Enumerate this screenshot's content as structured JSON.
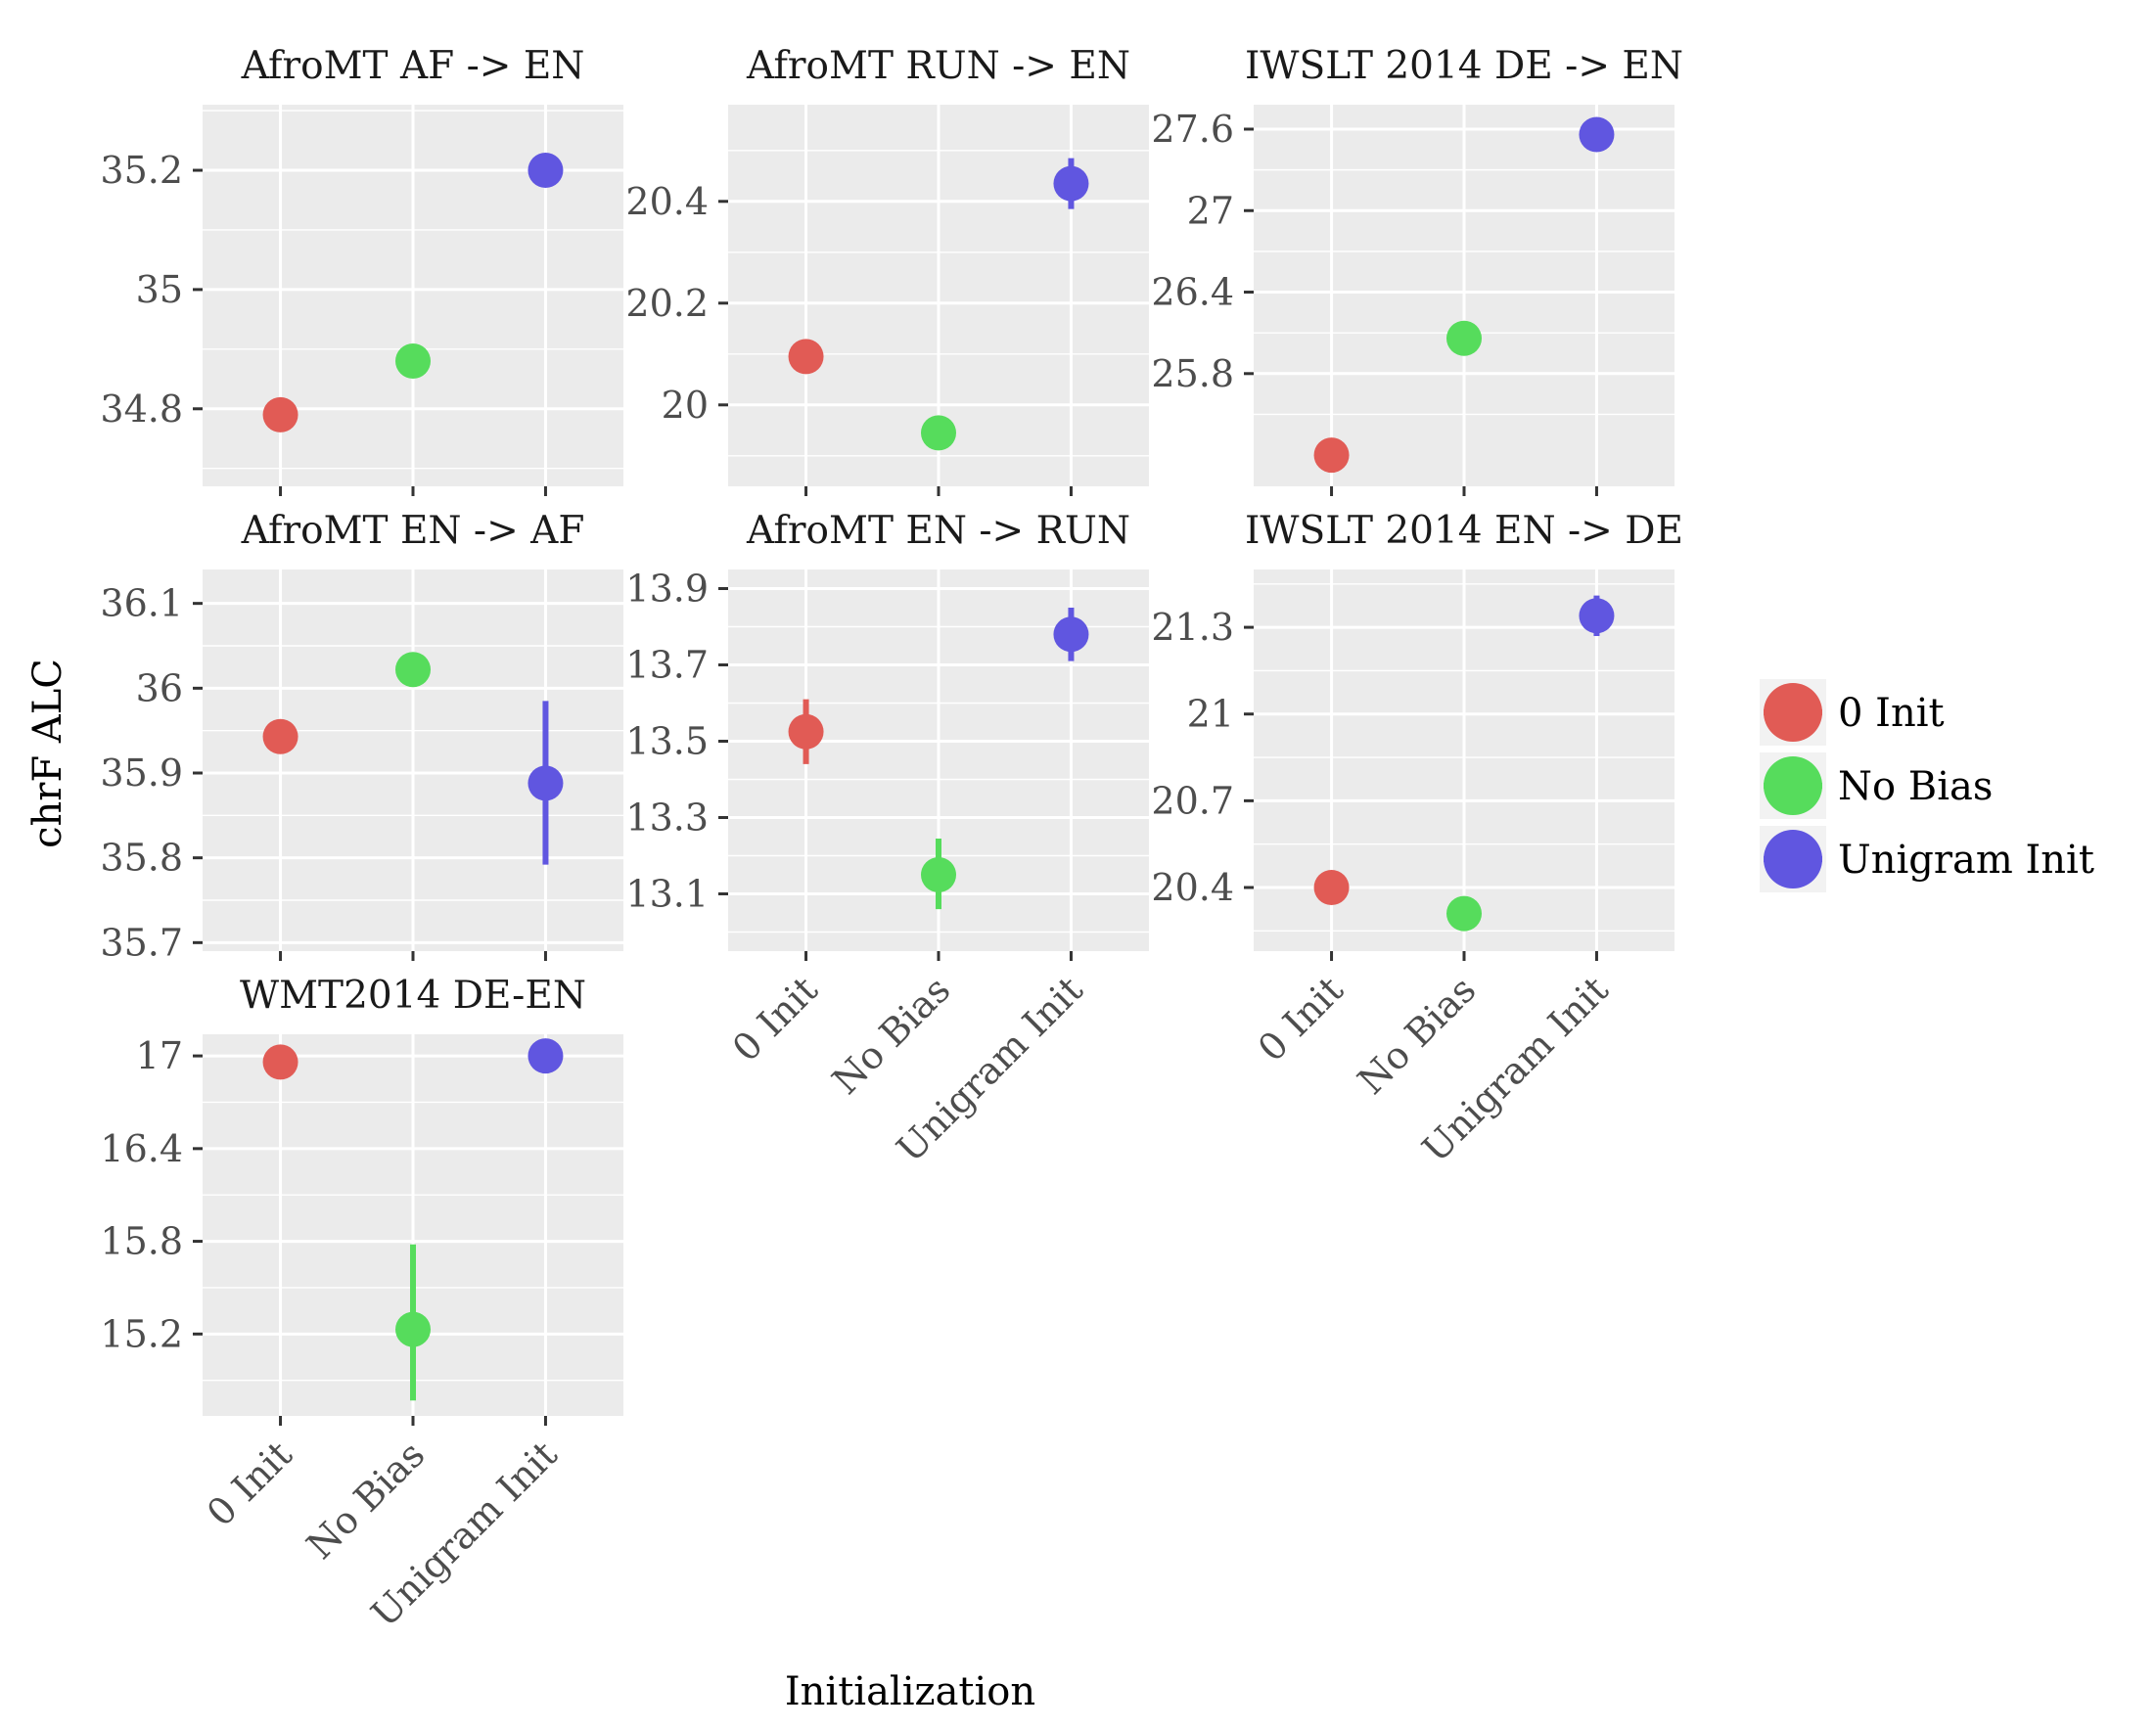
{
  "chart_data": {
    "type": "scatter",
    "xlabel": "Initialization",
    "ylabel": "chrF ALC",
    "categories": [
      "0 Init",
      "No Bias",
      "Unigram Init"
    ],
    "colors": {
      "0 Init": "#e15b55",
      "No Bias": "#56dc5c",
      "Unigram Init": "#6056e0"
    },
    "legend": {
      "position": "right",
      "items": [
        "0 Init",
        "No Bias",
        "Unigram Init"
      ]
    },
    "grid": true,
    "panels": [
      {
        "title": "AfroMT AF -> EN",
        "ylim": [
          34.67,
          35.31
        ],
        "yticks": [
          34.8,
          35,
          35.2
        ],
        "ytick_labels": [
          "34.8",
          "35",
          "35.2"
        ],
        "points": [
          {
            "category": "0 Init",
            "y": 34.79,
            "ymin": 34.79,
            "ymax": 34.79
          },
          {
            "category": "No Bias",
            "y": 34.88,
            "ymin": 34.88,
            "ymax": 34.88
          },
          {
            "category": "Unigram Init",
            "y": 35.2,
            "ymin": 35.2,
            "ymax": 35.2
          }
        ]
      },
      {
        "title": "AfroMT RUN -> EN",
        "ylim": [
          19.84,
          20.59
        ],
        "yticks": [
          20,
          20.2,
          20.4
        ],
        "ytick_labels": [
          "20",
          "20.2",
          "20.4"
        ],
        "points": [
          {
            "category": "0 Init",
            "y": 20.095,
            "ymin": 20.095,
            "ymax": 20.095
          },
          {
            "category": "No Bias",
            "y": 19.945,
            "ymin": 19.945,
            "ymax": 19.945
          },
          {
            "category": "Unigram Init",
            "y": 20.435,
            "ymin": 20.385,
            "ymax": 20.485
          }
        ]
      },
      {
        "title": "IWSLT 2014 DE -> EN",
        "ylim": [
          24.97,
          27.78
        ],
        "yticks": [
          25.8,
          26.4,
          27,
          27.6
        ],
        "ytick_labels": [
          "25.8",
          "26.4",
          "27",
          "27.6"
        ],
        "points": [
          {
            "category": "0 Init",
            "y": 25.2,
            "ymin": 25.2,
            "ymax": 25.2
          },
          {
            "category": "No Bias",
            "y": 26.06,
            "ymin": 26.06,
            "ymax": 26.06
          },
          {
            "category": "Unigram Init",
            "y": 27.56,
            "ymin": 27.56,
            "ymax": 27.56
          }
        ]
      },
      {
        "title": "AfroMT EN -> AF",
        "ylim": [
          35.69,
          36.14
        ],
        "yticks": [
          35.7,
          35.8,
          35.9,
          36,
          36.1
        ],
        "ytick_labels": [
          "35.7",
          "35.8",
          "35.9",
          "36",
          "36.1"
        ],
        "points": [
          {
            "category": "0 Init",
            "y": 35.943,
            "ymin": 35.943,
            "ymax": 35.943
          },
          {
            "category": "No Bias",
            "y": 36.022,
            "ymin": 36.022,
            "ymax": 36.022
          },
          {
            "category": "Unigram Init",
            "y": 35.888,
            "ymin": 35.792,
            "ymax": 35.985
          }
        ]
      },
      {
        "title": "AfroMT EN -> RUN",
        "ylim": [
          12.95,
          13.95
        ],
        "yticks": [
          13.1,
          13.3,
          13.5,
          13.7,
          13.9
        ],
        "ytick_labels": [
          "13.1",
          "13.3",
          "13.5",
          "13.7",
          "13.9"
        ],
        "points": [
          {
            "category": "0 Init",
            "y": 13.525,
            "ymin": 13.44,
            "ymax": 13.61
          },
          {
            "category": "No Bias",
            "y": 13.15,
            "ymin": 13.06,
            "ymax": 13.245
          },
          {
            "category": "Unigram Init",
            "y": 13.78,
            "ymin": 13.71,
            "ymax": 13.85
          }
        ]
      },
      {
        "title": "IWSLT 2014 EN -> DE",
        "ylim": [
          20.18,
          21.5
        ],
        "yticks": [
          20.4,
          20.7,
          21,
          21.3
        ],
        "ytick_labels": [
          "20.4",
          "20.7",
          "21",
          "21.3"
        ],
        "points": [
          {
            "category": "0 Init",
            "y": 20.4,
            "ymin": 20.4,
            "ymax": 20.4
          },
          {
            "category": "No Bias",
            "y": 20.31,
            "ymin": 20.31,
            "ymax": 20.31
          },
          {
            "category": "Unigram Init",
            "y": 21.34,
            "ymin": 21.27,
            "ymax": 21.41
          }
        ]
      },
      {
        "title": "WMT2014 DE-EN",
        "ylim": [
          14.67,
          17.14
        ],
        "yticks": [
          15.2,
          15.8,
          16.4,
          17
        ],
        "ytick_labels": [
          "15.2",
          "15.8",
          "16.4",
          "17"
        ],
        "points": [
          {
            "category": "0 Init",
            "y": 16.96,
            "ymin": 16.96,
            "ymax": 16.96
          },
          {
            "category": "No Bias",
            "y": 15.23,
            "ymin": 14.77,
            "ymax": 15.78
          },
          {
            "category": "Unigram Init",
            "y": 17.0,
            "ymin": 17.0,
            "ymax": 17.0
          }
        ]
      }
    ]
  }
}
